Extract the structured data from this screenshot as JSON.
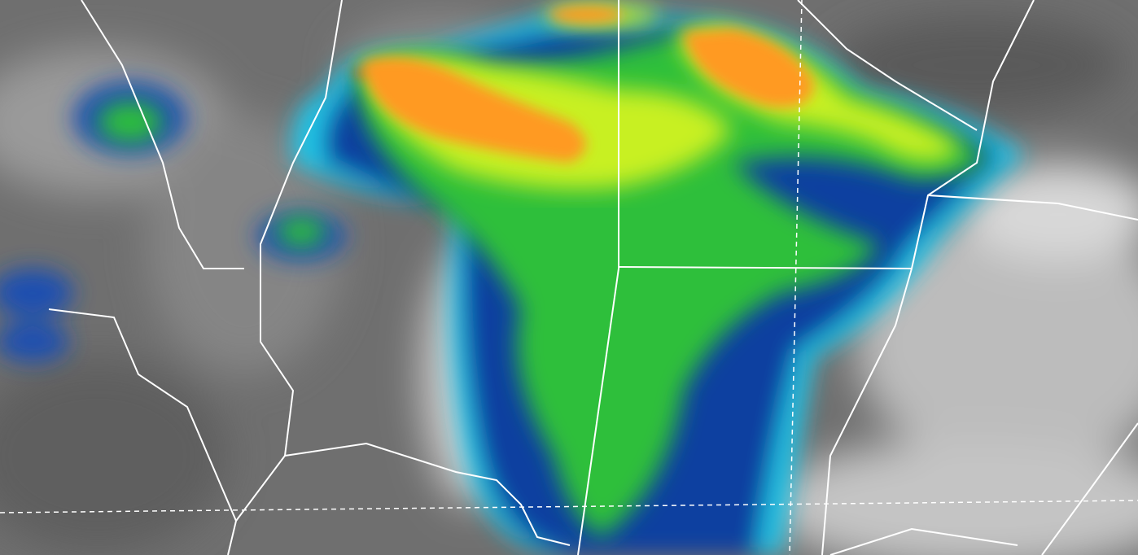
{
  "colors": {
    "background_gray": "#6f6f6f",
    "light_cloud": "#d8d8d8",
    "cold_cloud_blue": "#1e5fb0",
    "deep_blue": "#0c2a8a",
    "cyan": "#22c6e8",
    "green": "#2fbf3a",
    "yellow_green": "#c8f020",
    "orange": "#ff9a20",
    "red_core": "#e04010",
    "border_line": "#ffffff"
  }
}
